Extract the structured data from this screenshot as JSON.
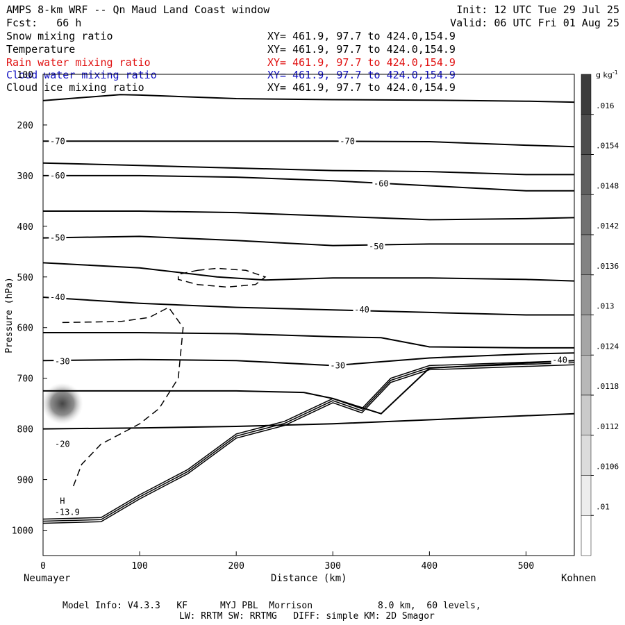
{
  "header": {
    "title": "AMPS 8-km WRF -- Qn Maud Land Coast window",
    "init": "Init: 12 UTC Tue 29 Jul 25",
    "forecast": "Fcst:   66 h",
    "valid": "Valid: 06 UTC Fri 01 Aug 25"
  },
  "fields": [
    {
      "name": "Snow mixing ratio",
      "xy": "XY= 461.9, 97.7 to 424.0,154.9",
      "color": "#000000"
    },
    {
      "name": "Temperature",
      "xy": "XY= 461.9, 97.7 to 424.0,154.9",
      "color": "#000000"
    },
    {
      "name": "Rain water mixing ratio",
      "xy": "XY= 461.9, 97.7 to 424.0,154.9",
      "color": "#e01010"
    },
    {
      "name": "Cloud water mixing ratio",
      "xy": "XY= 461.9, 97.7 to 424.0,154.9",
      "color": "#1010c0"
    },
    {
      "name": "Cloud ice mixing ratio",
      "xy": "XY= 461.9, 97.7 to 424.0,154.9",
      "color": "#000000"
    }
  ],
  "axes": {
    "ylabel": "Pressure (hPa)",
    "xlabel": "Distance (km)",
    "x_left_label": "Neumayer",
    "x_right_label": "Kohnen"
  },
  "colorbar": {
    "unit": "g kg",
    "unit_sup": "-1",
    "ticks": [
      ".016",
      ".0154",
      ".0148",
      ".0142",
      ".0136",
      ".013",
      ".0124",
      ".0118",
      ".0112",
      ".0106",
      ".01"
    ]
  },
  "footer": {
    "line1": "Model Info: V4.3.3   KF      MYJ PBL  Morrison            8.0 km,  60 levels,",
    "line2": "LW: RRTM SW: RRTMG   DIFF: simple KM: 2D Smagor"
  },
  "chart_data": {
    "type": "contour",
    "xlim": [
      0,
      550
    ],
    "ylim": [
      1050,
      100
    ],
    "x_ticks": [
      0,
      100,
      200,
      300,
      400,
      500
    ],
    "y_ticks": [
      100,
      200,
      300,
      400,
      500,
      600,
      700,
      800,
      900,
      1000
    ],
    "contour_labels": [
      {
        "text": "-70",
        "x": 15,
        "p": 232
      },
      {
        "text": "-70",
        "x": 315,
        "p": 232
      },
      {
        "text": "-60",
        "x": 15,
        "p": 300
      },
      {
        "text": "-60",
        "x": 350,
        "p": 316
      },
      {
        "text": "-50",
        "x": 15,
        "p": 423
      },
      {
        "text": "-50",
        "x": 345,
        "p": 440
      },
      {
        "text": "-40",
        "x": 15,
        "p": 540
      },
      {
        "text": "-40",
        "x": 330,
        "p": 565
      },
      {
        "text": "-30",
        "x": 20,
        "p": 667
      },
      {
        "text": "-30",
        "x": 305,
        "p": 675
      },
      {
        "text": "-40",
        "x": 535,
        "p": 664
      },
      {
        "text": "-20",
        "x": 20,
        "p": 830
      },
      {
        "text": "-13.9",
        "x": 25,
        "p": 964
      }
    ],
    "marker": {
      "text": "H",
      "x": 20,
      "p": 948
    },
    "temperature_isotherms": [
      {
        "x": [
          0,
          80,
          100,
          200,
          300,
          400,
          500,
          550
        ],
        "p": [
          152,
          140,
          141,
          148,
          150,
          151,
          153,
          155
        ]
      },
      {
        "x": [
          0,
          100,
          200,
          300,
          400,
          500,
          550
        ],
        "p": [
          232,
          232,
          232,
          232,
          233,
          240,
          243
        ]
      },
      {
        "x": [
          0,
          100,
          200,
          300,
          400,
          500,
          550
        ],
        "p": [
          275,
          280,
          285,
          290,
          292,
          298,
          298
        ]
      },
      {
        "x": [
          0,
          100,
          200,
          300,
          400,
          500,
          550
        ],
        "p": [
          300,
          300,
          303,
          310,
          320,
          330,
          330
        ]
      },
      {
        "x": [
          0,
          100,
          200,
          300,
          400,
          500,
          550
        ],
        "p": [
          370,
          370,
          373,
          380,
          387,
          385,
          383
        ]
      },
      {
        "x": [
          0,
          100,
          200,
          300,
          400,
          500,
          550
        ],
        "p": [
          423,
          420,
          428,
          438,
          435,
          435,
          435
        ]
      },
      {
        "x": [
          0,
          100,
          180,
          230,
          300,
          400,
          500,
          550
        ],
        "p": [
          472,
          482,
          500,
          506,
          502,
          502,
          505,
          508
        ]
      },
      {
        "x": [
          0,
          100,
          200,
          300,
          400,
          500,
          550
        ],
        "p": [
          540,
          552,
          560,
          565,
          570,
          575,
          575
        ]
      },
      {
        "x": [
          0,
          100,
          200,
          300,
          350,
          400,
          500,
          550
        ],
        "p": [
          610,
          610,
          612,
          618,
          620,
          638,
          640,
          640
        ]
      },
      {
        "x": [
          0,
          100,
          200,
          300,
          400,
          500,
          550
        ],
        "p": [
          665,
          663,
          665,
          675,
          660,
          652,
          650
        ]
      },
      {
        "x": [
          0,
          100,
          200,
          270,
          300,
          350,
          400,
          550
        ],
        "p": [
          725,
          725,
          725,
          728,
          740,
          770,
          680,
          665
        ]
      },
      {
        "x": [
          0,
          100,
          200,
          300,
          400,
          550
        ],
        "p": [
          800,
          798,
          795,
          790,
          782,
          770
        ]
      }
    ],
    "surface": {
      "x": [
        0,
        60,
        100,
        150,
        200,
        250,
        300,
        330,
        360,
        400,
        550
      ],
      "p": [
        978,
        975,
        930,
        880,
        810,
        785,
        740,
        760,
        700,
        675,
        665
      ]
    },
    "cloud_ice_dashed": [
      {
        "x": [
          160,
          180,
          210,
          230,
          220,
          190,
          160,
          140,
          140,
          160
        ],
        "p": [
          487,
          483,
          487,
          500,
          515,
          520,
          515,
          505,
          495,
          487
        ]
      },
      {
        "x": [
          20,
          80,
          110,
          130,
          145,
          140,
          120,
          100,
          80,
          60,
          40,
          30
        ],
        "p": [
          590,
          588,
          580,
          560,
          600,
          700,
          760,
          790,
          810,
          830,
          870,
          920
        ]
      }
    ],
    "snow_max": {
      "x": 20,
      "p": 750
    }
  }
}
